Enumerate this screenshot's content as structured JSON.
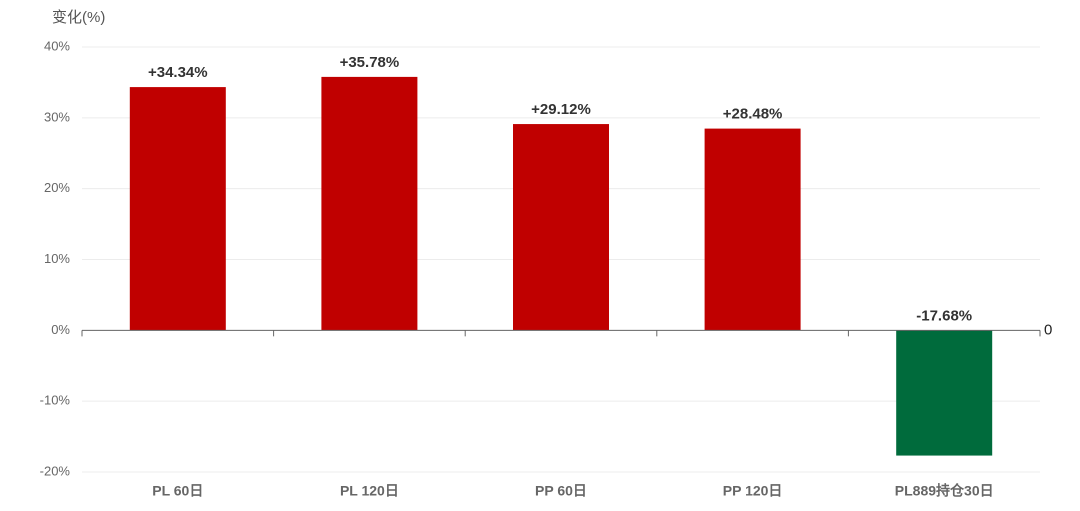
{
  "chart_data": {
    "type": "bar",
    "y_axis_title": "变化(%)",
    "categories": [
      "PL 60日",
      "PL 120日",
      "PP 60日",
      "PP 120日",
      "PL889持仓30日"
    ],
    "values": [
      34.34,
      35.78,
      29.12,
      28.48,
      -17.68
    ],
    "value_labels": [
      "+34.34%",
      "+35.78%",
      "+29.12%",
      "+28.48%",
      "-17.68%"
    ],
    "colors": [
      "#c00000",
      "#c00000",
      "#c00000",
      "#c00000",
      "#006b3c"
    ],
    "ylim": [
      -20,
      40
    ],
    "yticks": [
      {
        "value": -20,
        "label": "-20%"
      },
      {
        "value": -10,
        "label": "-10%"
      },
      {
        "value": 0,
        "label": "0%"
      },
      {
        "value": 10,
        "label": "10%"
      },
      {
        "value": 20,
        "label": "20%"
      },
      {
        "value": 30,
        "label": "30%"
      },
      {
        "value": 40,
        "label": "40%"
      }
    ],
    "annotations": [
      {
        "text": "0",
        "y": 0
      }
    ],
    "grid": true
  }
}
